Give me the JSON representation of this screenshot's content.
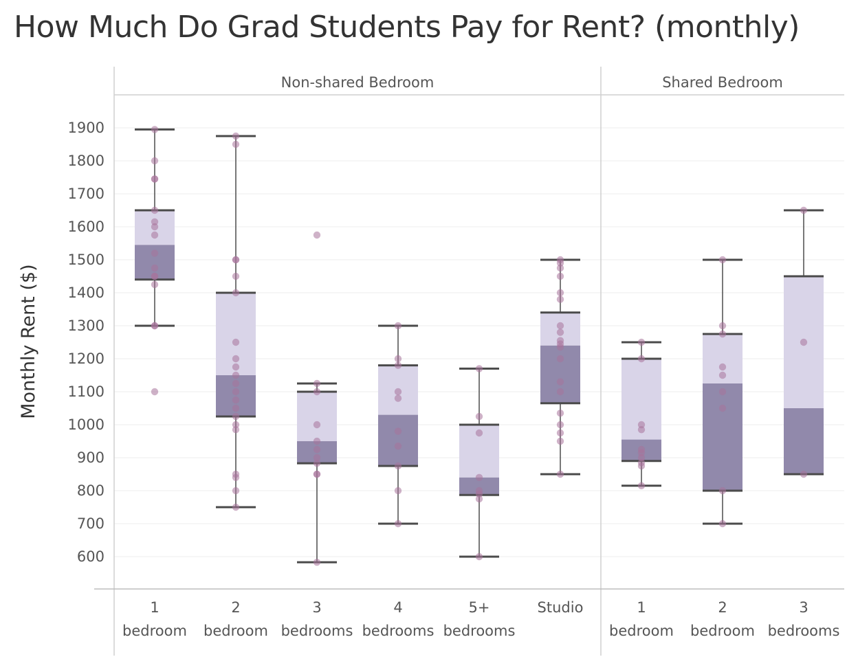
{
  "chart_data": {
    "type": "box",
    "title": "How Much Do Grad Students Pay for Rent? (monthly)",
    "ylabel": "Monthly Rent ($)",
    "ylim": [
      500,
      1950
    ],
    "yticks": [
      600,
      700,
      800,
      900,
      1000,
      1100,
      1200,
      1300,
      1400,
      1500,
      1600,
      1700,
      1800,
      1900
    ],
    "grid": true,
    "colors": {
      "upper_box": "#d9d4e8",
      "lower_box": "#9189ab",
      "whisker": "#4a4a4a",
      "point": "#a8729b"
    },
    "panels": [
      {
        "name": "Non-shared Bedroom",
        "categories": [
          {
            "label": [
              "1",
              "bedroom"
            ],
            "whisker_low": 1300,
            "q1": 1440,
            "median": 1545,
            "q3": 1650,
            "whisker_high": 1895,
            "points": [
              1895,
              1800,
              1745,
              1745,
              1650,
              1615,
              1600,
              1575,
              1520,
              1475,
              1450,
              1450,
              1425,
              1300,
              1300,
              1100
            ]
          },
          {
            "label": [
              "2",
              "bedroom"
            ],
            "whisker_low": 750,
            "q1": 1025,
            "median": 1150,
            "q3": 1400,
            "whisker_high": 1875,
            "points": [
              1875,
              1850,
              1500,
              1500,
              1450,
              1400,
              1250,
              1200,
              1175,
              1150,
              1125,
              1100,
              1075,
              1050,
              1025,
              1000,
              985,
              850,
              840,
              800,
              750
            ]
          },
          {
            "label": [
              "3",
              "bedrooms"
            ],
            "whisker_low": 583,
            "q1": 883,
            "median": 950,
            "q3": 1100,
            "whisker_high": 1125,
            "points": [
              1575,
              1125,
              1100,
              1000,
              950,
              925,
              900,
              883,
              850,
              850,
              583
            ]
          },
          {
            "label": [
              "4",
              "bedrooms"
            ],
            "whisker_low": 700,
            "q1": 875,
            "median": 1030,
            "q3": 1180,
            "whisker_high": 1300,
            "points": [
              1300,
              1200,
              1180,
              1100,
              1080,
              980,
              935,
              875,
              800,
              700
            ]
          },
          {
            "label": [
              "5+",
              "bedrooms"
            ],
            "whisker_low": 600,
            "q1": 787,
            "median": 840,
            "q3": 1000,
            "whisker_high": 1170,
            "points": [
              1170,
              1025,
              975,
              840,
              800,
              790,
              775,
              600
            ]
          },
          {
            "label": [
              "Studio",
              ""
            ],
            "whisker_low": 850,
            "q1": 1065,
            "median": 1240,
            "q3": 1340,
            "whisker_high": 1500,
            "points": [
              1500,
              1490,
              1475,
              1450,
              1400,
              1380,
              1300,
              1280,
              1255,
              1245,
              1235,
              1200,
              1130,
              1100,
              1035,
              1000,
              975,
              950,
              850
            ]
          }
        ]
      },
      {
        "name": "Shared Bedroom",
        "categories": [
          {
            "label": [
              "1",
              "bedroom"
            ],
            "whisker_low": 815,
            "q1": 890,
            "median": 955,
            "q3": 1200,
            "whisker_high": 1250,
            "points": [
              1250,
              1200,
              1000,
              985,
              925,
              915,
              900,
              885,
              875,
              815
            ]
          },
          {
            "label": [
              "2",
              "bedroom"
            ],
            "whisker_low": 700,
            "q1": 800,
            "median": 1125,
            "q3": 1275,
            "whisker_high": 1500,
            "points": [
              1500,
              1300,
              1275,
              1175,
              1150,
              1100,
              1050,
              800,
              700
            ]
          },
          {
            "label": [
              "3",
              "bedrooms"
            ],
            "whisker_low": 850,
            "q1": 850,
            "median": 1050,
            "q3": 1450,
            "whisker_high": 1650,
            "points": [
              1650,
              1250,
              850
            ]
          }
        ]
      }
    ]
  }
}
